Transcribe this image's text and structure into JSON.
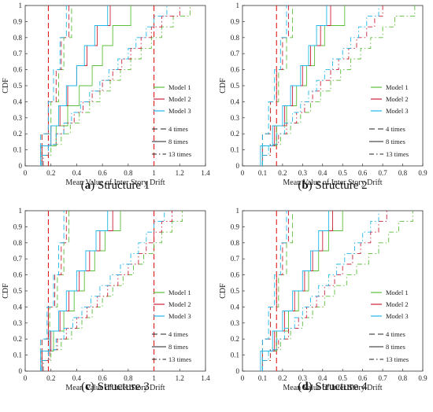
{
  "colors": {
    "model1": "#5bbd3a",
    "model2": "#cc2038",
    "model3": "#1fb8e8",
    "ref": "#e01b1b",
    "axis": "#333333"
  },
  "chart_data": [
    {
      "type": "line",
      "caption_label": "a",
      "caption_text": "Structure 1",
      "xlabel": "Mean Value of Inter Story Drift",
      "ylabel": "CDF",
      "xlim": [
        0,
        1.4
      ],
      "ylim": [
        0,
        1
      ],
      "xticks": [
        "0",
        "0.2",
        "0.4",
        "0.6",
        "0.8",
        "1",
        "1.2",
        "1.4"
      ],
      "yticks": [
        "0",
        "0.1",
        "0.2",
        "0.3",
        "0.4",
        "0.5",
        "0.6",
        "0.7",
        "0.8",
        "0.9",
        "1"
      ],
      "ref_lines": [
        0.18,
        1.0
      ],
      "legend": {
        "models": [
          "Model 1",
          "Model 2",
          "Model 3"
        ],
        "styles": [
          "4 times",
          "8 times",
          "13 times"
        ]
      },
      "series": [
        {
          "model": 1,
          "style": 4,
          "x": [
            0.13,
            0.2,
            0.26,
            0.3,
            0.36
          ]
        },
        {
          "model": 1,
          "style": 8,
          "x": [
            0.13,
            0.24,
            0.33,
            0.42,
            0.52,
            0.6,
            0.68,
            0.82
          ]
        },
        {
          "model": 1,
          "style": 13,
          "x": [
            0.14,
            0.2,
            0.28,
            0.35,
            0.42,
            0.5,
            0.58,
            0.66,
            0.74,
            0.82,
            0.9,
            0.98,
            1.06,
            1.15,
            1.28
          ]
        },
        {
          "model": 2,
          "style": 4,
          "x": [
            0.13,
            0.18,
            0.24,
            0.28,
            0.34
          ]
        },
        {
          "model": 2,
          "style": 8,
          "x": [
            0.13,
            0.2,
            0.27,
            0.33,
            0.4,
            0.48,
            0.56,
            0.66
          ]
        },
        {
          "model": 2,
          "style": 13,
          "x": [
            0.14,
            0.18,
            0.24,
            0.3,
            0.38,
            0.45,
            0.52,
            0.6,
            0.68,
            0.75,
            0.82,
            0.9,
            0.98,
            1.06,
            1.2
          ]
        },
        {
          "model": 3,
          "style": 4,
          "x": [
            0.12,
            0.18,
            0.22,
            0.27,
            0.32
          ]
        },
        {
          "model": 3,
          "style": 8,
          "x": [
            0.12,
            0.2,
            0.26,
            0.32,
            0.4,
            0.46,
            0.54,
            0.64
          ]
        },
        {
          "model": 3,
          "style": 13,
          "x": [
            0.13,
            0.18,
            0.24,
            0.3,
            0.36,
            0.43,
            0.5,
            0.58,
            0.65,
            0.72,
            0.8,
            0.86,
            0.94,
            1.0,
            1.1
          ]
        }
      ]
    },
    {
      "type": "line",
      "caption_label": "b",
      "caption_text": "Structure 2",
      "xlabel": "Mean Value of Inter Story Drift",
      "ylabel": "CDF",
      "xlim": [
        0,
        0.9
      ],
      "ylim": [
        0,
        1
      ],
      "xticks": [
        "0",
        "0.1",
        "0.2",
        "0.3",
        "0.4",
        "0.5",
        "0.6",
        "0.7",
        "0.8",
        "0.9"
      ],
      "yticks": [
        "0",
        "0.1",
        "0.2",
        "0.3",
        "0.4",
        "0.5",
        "0.6",
        "0.7",
        "0.8",
        "0.9",
        "1"
      ],
      "ref_lines": [
        0.17
      ],
      "legend": {
        "models": [
          "Model 1",
          "Model 2",
          "Model 3"
        ],
        "styles": [
          "4 times",
          "8 times",
          "13 times"
        ]
      },
      "series": [
        {
          "model": 1,
          "style": 4,
          "x": [
            0.1,
            0.14,
            0.18,
            0.22,
            0.25
          ]
        },
        {
          "model": 1,
          "style": 8,
          "x": [
            0.1,
            0.17,
            0.22,
            0.27,
            0.32,
            0.36,
            0.41,
            0.51
          ]
        },
        {
          "model": 1,
          "style": 13,
          "x": [
            0.1,
            0.14,
            0.19,
            0.24,
            0.29,
            0.34,
            0.39,
            0.44,
            0.49,
            0.54,
            0.59,
            0.64,
            0.7,
            0.76,
            0.86
          ]
        },
        {
          "model": 2,
          "style": 4,
          "x": [
            0.1,
            0.14,
            0.17,
            0.2,
            0.23
          ]
        },
        {
          "model": 2,
          "style": 8,
          "x": [
            0.1,
            0.16,
            0.21,
            0.25,
            0.3,
            0.34,
            0.39,
            0.44
          ]
        },
        {
          "model": 2,
          "style": 13,
          "x": [
            0.1,
            0.14,
            0.18,
            0.22,
            0.27,
            0.31,
            0.35,
            0.39,
            0.44,
            0.48,
            0.53,
            0.57,
            0.62,
            0.66,
            0.7
          ]
        },
        {
          "model": 3,
          "style": 4,
          "x": [
            0.1,
            0.13,
            0.16,
            0.19,
            0.22
          ]
        },
        {
          "model": 3,
          "style": 8,
          "x": [
            0.09,
            0.15,
            0.2,
            0.24,
            0.29,
            0.33,
            0.37,
            0.42
          ]
        },
        {
          "model": 3,
          "style": 13,
          "x": [
            0.1,
            0.13,
            0.17,
            0.21,
            0.25,
            0.29,
            0.33,
            0.37,
            0.41,
            0.45,
            0.5,
            0.54,
            0.58,
            0.62,
            0.68
          ]
        }
      ]
    },
    {
      "type": "line",
      "caption_label": "c",
      "caption_text": "Structure 3",
      "xlabel": "Mean Value of Inter Story Drift",
      "ylabel": "CDF",
      "xlim": [
        0,
        1.4
      ],
      "ylim": [
        0,
        1
      ],
      "xticks": [
        "0",
        "0.2",
        "0.4",
        "0.6",
        "0.8",
        "1",
        "1.2",
        "1.4"
      ],
      "yticks": [
        "0",
        "0.1",
        "0.2",
        "0.3",
        "0.4",
        "0.5",
        "0.6",
        "0.7",
        "0.8",
        "0.9",
        "1"
      ],
      "ref_lines": [
        0.18,
        1.0
      ],
      "legend": {
        "models": [
          "Model 1",
          "Model 2",
          "Model 3"
        ],
        "styles": [
          "4 times",
          "8 times",
          "13 times"
        ]
      },
      "series": [
        {
          "model": 1,
          "style": 4,
          "x": [
            0.13,
            0.19,
            0.25,
            0.3,
            0.34
          ]
        },
        {
          "model": 1,
          "style": 8,
          "x": [
            0.13,
            0.22,
            0.3,
            0.38,
            0.46,
            0.54,
            0.62,
            0.74
          ]
        },
        {
          "model": 1,
          "style": 13,
          "x": [
            0.14,
            0.2,
            0.28,
            0.36,
            0.44,
            0.52,
            0.6,
            0.68,
            0.76,
            0.84,
            0.92,
            1.0,
            1.06,
            1.14,
            1.22
          ]
        },
        {
          "model": 2,
          "style": 4,
          "x": [
            0.13,
            0.18,
            0.23,
            0.28,
            0.32
          ]
        },
        {
          "model": 2,
          "style": 8,
          "x": [
            0.13,
            0.2,
            0.27,
            0.34,
            0.42,
            0.5,
            0.58,
            0.68
          ]
        },
        {
          "model": 2,
          "style": 13,
          "x": [
            0.14,
            0.19,
            0.25,
            0.32,
            0.4,
            0.48,
            0.56,
            0.64,
            0.72,
            0.8,
            0.88,
            0.94,
            1.0,
            1.06,
            1.14
          ]
        },
        {
          "model": 3,
          "style": 4,
          "x": [
            0.12,
            0.17,
            0.22,
            0.26,
            0.3
          ]
        },
        {
          "model": 3,
          "style": 8,
          "x": [
            0.12,
            0.19,
            0.26,
            0.32,
            0.4,
            0.47,
            0.55,
            0.64
          ]
        },
        {
          "model": 3,
          "style": 13,
          "x": [
            0.13,
            0.18,
            0.24,
            0.3,
            0.37,
            0.44,
            0.51,
            0.58,
            0.66,
            0.74,
            0.82,
            0.88,
            0.94,
            1.0,
            1.08
          ]
        }
      ]
    },
    {
      "type": "line",
      "caption_label": "d",
      "caption_text": "Structure 4",
      "xlabel": "Mean Value of Inter Story Drift",
      "ylabel": "CDF",
      "xlim": [
        0,
        0.9
      ],
      "ylim": [
        0,
        1
      ],
      "xticks": [
        "0",
        "0.1",
        "0.2",
        "0.3",
        "0.4",
        "0.5",
        "0.6",
        "0.7",
        "0.8",
        "0.9"
      ],
      "yticks": [
        "0",
        "0.1",
        "0.2",
        "0.3",
        "0.4",
        "0.5",
        "0.6",
        "0.7",
        "0.8",
        "0.9",
        "1"
      ],
      "ref_lines": [
        0.17
      ],
      "legend": {
        "models": [
          "Model 1",
          "Model 2",
          "Model 3"
        ],
        "styles": [
          "4 times",
          "8 times",
          "13 times"
        ]
      },
      "series": [
        {
          "model": 1,
          "style": 4,
          "x": [
            0.1,
            0.14,
            0.18,
            0.22,
            0.25
          ]
        },
        {
          "model": 1,
          "style": 8,
          "x": [
            0.1,
            0.17,
            0.23,
            0.28,
            0.33,
            0.38,
            0.43,
            0.5
          ]
        },
        {
          "model": 1,
          "style": 13,
          "x": [
            0.1,
            0.14,
            0.19,
            0.24,
            0.3,
            0.35,
            0.41,
            0.46,
            0.52,
            0.57,
            0.63,
            0.68,
            0.73,
            0.78,
            0.85
          ]
        },
        {
          "model": 2,
          "style": 4,
          "x": [
            0.1,
            0.14,
            0.17,
            0.2,
            0.23
          ]
        },
        {
          "model": 2,
          "style": 8,
          "x": [
            0.1,
            0.16,
            0.21,
            0.26,
            0.31,
            0.35,
            0.4,
            0.45
          ]
        },
        {
          "model": 2,
          "style": 13,
          "x": [
            0.1,
            0.14,
            0.18,
            0.23,
            0.28,
            0.32,
            0.37,
            0.41,
            0.46,
            0.5,
            0.55,
            0.59,
            0.64,
            0.68,
            0.72
          ]
        },
        {
          "model": 3,
          "style": 4,
          "x": [
            0.1,
            0.13,
            0.16,
            0.19,
            0.22
          ]
        },
        {
          "model": 3,
          "style": 8,
          "x": [
            0.09,
            0.15,
            0.2,
            0.25,
            0.3,
            0.34,
            0.38,
            0.43
          ]
        },
        {
          "model": 3,
          "style": 13,
          "x": [
            0.1,
            0.13,
            0.17,
            0.21,
            0.26,
            0.3,
            0.34,
            0.38,
            0.43,
            0.47,
            0.51,
            0.56,
            0.6,
            0.64,
            0.68
          ]
        }
      ]
    }
  ]
}
